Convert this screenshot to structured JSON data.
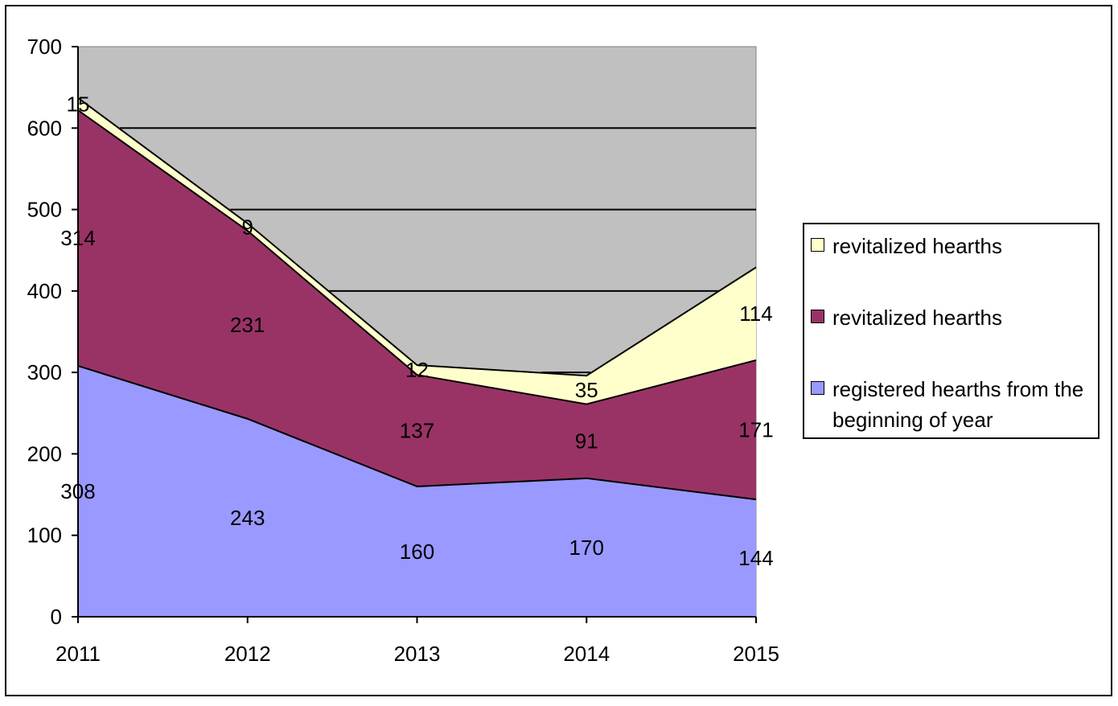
{
  "chart_data": {
    "type": "area",
    "stacked": true,
    "categories": [
      "2011",
      "2012",
      "2013",
      "2014",
      "2015"
    ],
    "series": [
      {
        "name": "registered hearths from the beginning of year",
        "values": [
          308,
          243,
          160,
          170,
          144
        ],
        "color": "#9999ff"
      },
      {
        "name": "revitalized hearths",
        "values": [
          314,
          231,
          137,
          91,
          171
        ],
        "color": "#993366"
      },
      {
        "name": "revitalized hearths",
        "values": [
          15,
          9,
          12,
          35,
          114
        ],
        "color": "#ffffcc"
      }
    ],
    "ylim": [
      0,
      700
    ],
    "yticks": [
      0,
      100,
      200,
      300,
      400,
      500,
      600,
      700
    ],
    "plot_background": "#c0c0c0",
    "grid": true,
    "legend_position": "right",
    "title": "",
    "xlabel": "",
    "ylabel": ""
  }
}
